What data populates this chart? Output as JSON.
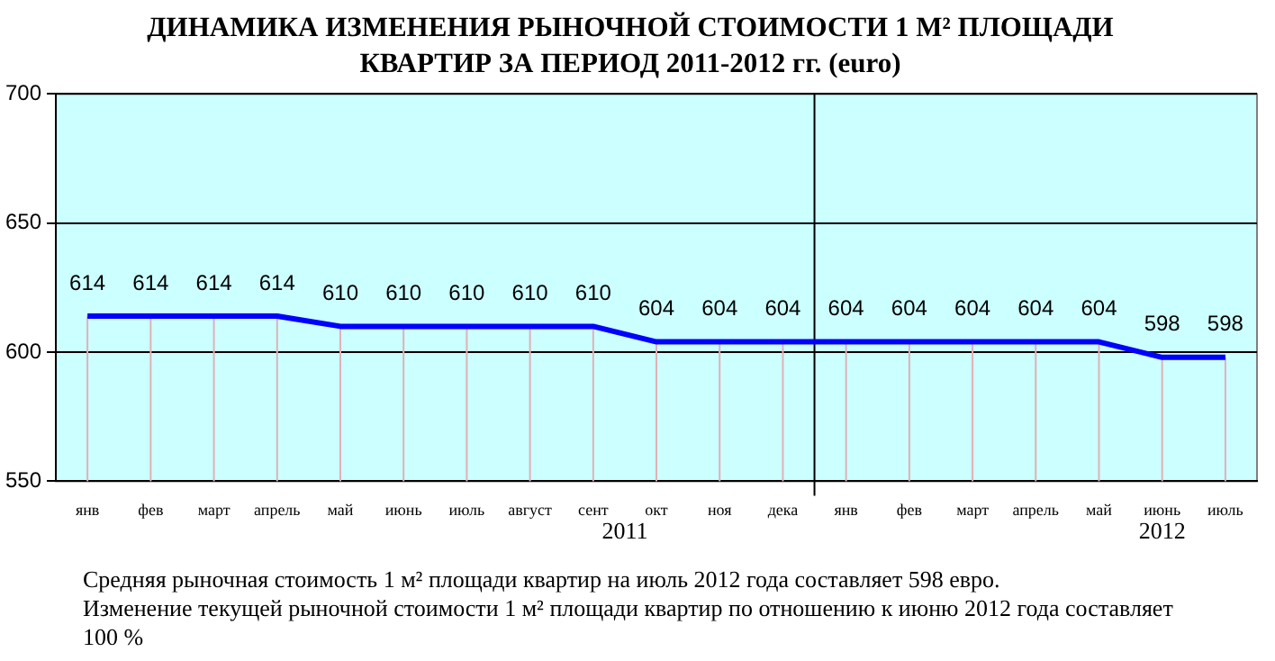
{
  "chart_data": {
    "type": "line",
    "title": "ДИНАМИКА ИЗМЕНЕНИЯ РЫНОЧНОЙ СТОИМОСТИ  1 М² ПЛОЩАДИ КВАРТИР ЗА ПЕРИОД 2011-2012 гг. (euro)",
    "categories": [
      "янв",
      "фев",
      "март",
      "апрель",
      "май",
      "июнь",
      "июль",
      "август",
      "сент",
      "окт",
      "ноя",
      "дека",
      "янв",
      "фев",
      "март",
      "апрель",
      "май",
      "июнь",
      "июль"
    ],
    "series": [
      {
        "color": "#0000ff",
        "values": [
          614,
          614,
          614,
          614,
          610,
          610,
          610,
          610,
          610,
          604,
          604,
          604,
          604,
          604,
          604,
          604,
          604,
          598,
          598
        ]
      }
    ],
    "ylim": [
      550,
      700
    ],
    "yticks": [
      550,
      600,
      650,
      700
    ],
    "grid": "y",
    "legend": false,
    "marker": "none",
    "line_style": "solid",
    "data_labels": true,
    "annotations": [
      "2011",
      "2012",
      "Средняя рыночная стоимость 1 м² площади квартир на июль 2012 года составляет 598 евро.",
      "Изменение текущей рыночной стоимости 1 м² площади квартир по отношению к июню 2012 года составляет 100 %"
    ]
  }
}
